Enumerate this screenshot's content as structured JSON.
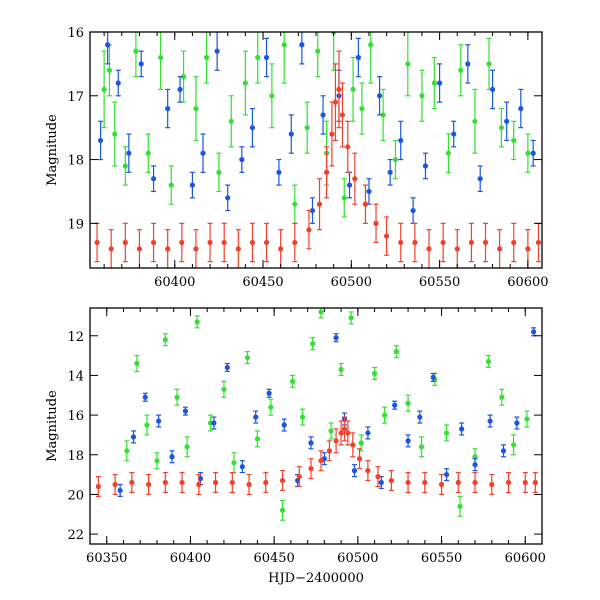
{
  "colors": {
    "green": "#33e033",
    "blue": "#1a55e6",
    "red": "#f2402c",
    "axes": "#000000",
    "background": "#ffffff"
  },
  "chart_data": [
    {
      "type": "scatter",
      "title": "",
      "xlabel": "",
      "ylabel": "Magnitude",
      "xlim": [
        60352,
        60608
      ],
      "ylim": [
        19.7,
        16.0
      ],
      "y_inverted": true,
      "error_bars": true,
      "xticks": [
        60400,
        60450,
        60500,
        60550,
        60600
      ],
      "yticks": [
        16,
        17,
        18,
        19
      ],
      "x_tick_labels": [
        "60400",
        "60450",
        "60500",
        "60550",
        "60600"
      ],
      "y_tick_labels": [
        "16",
        "17",
        "18",
        "19"
      ],
      "series": [
        {
          "color": "green",
          "x": [
            60360,
            60363,
            60366,
            60372,
            60378,
            60385,
            60392,
            60398,
            60405,
            60412,
            60418,
            60425,
            60432,
            60440,
            60447,
            60455,
            60462,
            60468,
            60475,
            60481,
            60486,
            60490,
            60496,
            60501,
            60506,
            60511,
            60518,
            60525,
            60532,
            60540,
            60547,
            60555,
            60562,
            60570,
            60578,
            60585,
            60592,
            60600
          ],
          "y": [
            16.9,
            16.6,
            17.6,
            18.1,
            16.3,
            17.9,
            16.4,
            18.4,
            16.7,
            17.2,
            16.4,
            18.2,
            17.4,
            16.8,
            16.4,
            17.0,
            16.2,
            18.7,
            17.5,
            16.3,
            17.9,
            16.0,
            18.6,
            16.9,
            17.2,
            16.2,
            17.3,
            18.0,
            16.5,
            17.0,
            16.8,
            17.9,
            16.6,
            17.4,
            16.5,
            17.5,
            17.7,
            17.9
          ],
          "yerr": [
            0.6,
            0.4,
            0.5,
            0.3,
            0.4,
            0.3,
            0.5,
            0.3,
            0.4,
            0.5,
            0.4,
            0.3,
            0.4,
            0.5,
            0.4,
            0.5,
            0.6,
            0.3,
            0.4,
            0.4,
            0.5,
            0.6,
            0.3,
            0.5,
            0.4,
            0.6,
            0.4,
            0.3,
            0.5,
            0.4,
            0.4,
            0.3,
            0.4,
            0.5,
            0.4,
            0.3,
            0.3,
            0.3
          ]
        },
        {
          "color": "blue",
          "x": [
            60358,
            60362,
            60368,
            60374,
            60381,
            60388,
            60396,
            60403,
            60410,
            60416,
            60424,
            60430,
            60438,
            60444,
            60452,
            60459,
            60466,
            60472,
            60478,
            60484,
            60493,
            60499,
            60504,
            60510,
            60516,
            60522,
            60528,
            60535,
            60542,
            60550,
            60558,
            60566,
            60573,
            60580,
            60588,
            60596,
            60603
          ],
          "y": [
            17.7,
            16.2,
            16.8,
            17.9,
            16.5,
            18.3,
            17.2,
            16.9,
            18.4,
            17.9,
            16.3,
            18.6,
            18.0,
            17.5,
            16.4,
            18.2,
            17.6,
            16.2,
            18.8,
            17.3,
            17.0,
            18.4,
            16.4,
            18.5,
            17.0,
            18.2,
            17.7,
            18.8,
            18.1,
            16.8,
            17.6,
            16.5,
            18.3,
            16.9,
            17.4,
            17.2,
            17.9
          ],
          "yerr": [
            0.3,
            0.3,
            0.2,
            0.3,
            0.2,
            0.2,
            0.3,
            0.2,
            0.2,
            0.3,
            0.3,
            0.2,
            0.2,
            0.3,
            0.3,
            0.2,
            0.3,
            0.3,
            0.2,
            0.3,
            0.4,
            0.2,
            0.3,
            0.2,
            0.3,
            0.2,
            0.3,
            0.2,
            0.2,
            0.3,
            0.2,
            0.3,
            0.2,
            0.3,
            0.3,
            0.3,
            0.2
          ]
        },
        {
          "color": "red",
          "x": [
            60356,
            60364,
            60372,
            60380,
            60388,
            60396,
            60404,
            60412,
            60420,
            60428,
            60436,
            60444,
            60452,
            60460,
            60468,
            60476,
            60482,
            60486,
            60489,
            60491,
            60493,
            60495,
            60498,
            60502,
            60508,
            60514,
            60520,
            60528,
            60536,
            60544,
            60552,
            60560,
            60568,
            60576,
            60584,
            60592,
            60600,
            60606
          ],
          "y": [
            19.3,
            19.4,
            19.3,
            19.4,
            19.3,
            19.4,
            19.3,
            19.4,
            19.3,
            19.3,
            19.4,
            19.3,
            19.3,
            19.4,
            19.3,
            19.1,
            18.7,
            18.2,
            17.6,
            17.1,
            16.9,
            17.3,
            17.8,
            18.3,
            18.7,
            19.0,
            19.2,
            19.3,
            19.3,
            19.4,
            19.3,
            19.4,
            19.3,
            19.3,
            19.4,
            19.3,
            19.4,
            19.3
          ],
          "yerr": [
            0.3,
            0.3,
            0.3,
            0.3,
            0.3,
            0.3,
            0.3,
            0.3,
            0.3,
            0.3,
            0.3,
            0.3,
            0.3,
            0.3,
            0.3,
            0.3,
            0.4,
            0.4,
            0.5,
            0.6,
            0.6,
            0.5,
            0.4,
            0.4,
            0.3,
            0.3,
            0.3,
            0.3,
            0.3,
            0.3,
            0.3,
            0.3,
            0.3,
            0.3,
            0.3,
            0.3,
            0.3,
            0.3
          ]
        }
      ]
    },
    {
      "type": "scatter",
      "title": "",
      "xlabel": "HJD−2400000",
      "ylabel": "Magnitude",
      "xlim": [
        60340,
        60610
      ],
      "ylim": [
        22.5,
        10.6
      ],
      "y_inverted": true,
      "error_bars": true,
      "xticks": [
        60350,
        60400,
        60450,
        60500,
        60550,
        60600
      ],
      "yticks": [
        12,
        14,
        16,
        18,
        20,
        22
      ],
      "x_tick_labels": [
        "60350",
        "60400",
        "60450",
        "60500",
        "60550",
        "60600"
      ],
      "y_tick_labels": [
        "12",
        "14",
        "16",
        "18",
        "20",
        "22"
      ],
      "series": [
        {
          "color": "green",
          "x": [
            60362,
            60368,
            60374,
            60380,
            60385,
            60392,
            60398,
            60404,
            60412,
            60420,
            60426,
            60434,
            60440,
            60448,
            60455,
            60461,
            60467,
            60473,
            60478,
            60484,
            60490,
            60496,
            60502,
            60510,
            60516,
            60523,
            60530,
            60538,
            60546,
            60553,
            60561,
            60570,
            60578,
            60586,
            60593,
            60601
          ],
          "y": [
            17.8,
            13.4,
            16.5,
            18.3,
            12.2,
            15.1,
            17.6,
            11.3,
            16.4,
            14.7,
            18.4,
            13.1,
            17.2,
            15.6,
            20.8,
            14.3,
            16.1,
            12.4,
            10.8,
            16.8,
            13.7,
            11.1,
            17.4,
            13.9,
            16.0,
            12.8,
            15.4,
            17.6,
            14.2,
            16.9,
            20.6,
            18.1,
            13.3,
            15.1,
            17.5,
            16.2
          ],
          "yerr": [
            0.5,
            0.4,
            0.5,
            0.4,
            0.3,
            0.4,
            0.5,
            0.3,
            0.4,
            0.4,
            0.5,
            0.3,
            0.4,
            0.4,
            0.5,
            0.3,
            0.4,
            0.3,
            0.3,
            0.4,
            0.3,
            0.3,
            0.4,
            0.3,
            0.4,
            0.3,
            0.4,
            0.5,
            0.3,
            0.4,
            0.5,
            0.4,
            0.3,
            0.4,
            0.5,
            0.4
          ]
        },
        {
          "color": "blue",
          "x": [
            60358,
            60366,
            60373,
            60381,
            60389,
            60397,
            60406,
            60414,
            60422,
            60431,
            60439,
            60447,
            60456,
            60464,
            60472,
            60480,
            60487,
            60492,
            60498,
            60506,
            60514,
            60522,
            60530,
            60537,
            60545,
            60553,
            60562,
            60570,
            60579,
            60587,
            60595,
            60605
          ],
          "y": [
            19.8,
            17.1,
            15.1,
            16.3,
            18.1,
            15.8,
            19.2,
            16.4,
            13.6,
            18.6,
            16.1,
            14.9,
            16.5,
            19.3,
            17.4,
            18.2,
            12.1,
            16.2,
            18.8,
            16.9,
            19.4,
            15.5,
            17.3,
            16.1,
            14.1,
            19.0,
            16.7,
            18.5,
            16.3,
            17.8,
            16.4,
            11.8
          ],
          "yerr": [
            0.3,
            0.3,
            0.2,
            0.3,
            0.3,
            0.2,
            0.3,
            0.3,
            0.2,
            0.3,
            0.3,
            0.2,
            0.3,
            0.3,
            0.3,
            0.3,
            0.2,
            0.3,
            0.3,
            0.3,
            0.3,
            0.2,
            0.3,
            0.3,
            0.2,
            0.3,
            0.3,
            0.3,
            0.3,
            0.3,
            0.3,
            0.2
          ]
        },
        {
          "color": "red",
          "x": [
            60345,
            60355,
            60365,
            60375,
            60385,
            60395,
            60405,
            60415,
            60425,
            60435,
            60445,
            60455,
            60465,
            60472,
            60478,
            60483,
            60487,
            60490,
            60492,
            60494,
            60497,
            60501,
            60506,
            60512,
            60520,
            60530,
            60540,
            60550,
            60560,
            60570,
            60580,
            60590,
            60600,
            60606
          ],
          "y": [
            19.6,
            19.5,
            19.4,
            19.5,
            19.4,
            19.4,
            19.5,
            19.4,
            19.4,
            19.5,
            19.4,
            19.3,
            19.1,
            18.7,
            18.3,
            17.8,
            17.3,
            16.9,
            16.7,
            16.9,
            17.5,
            18.2,
            18.8,
            19.1,
            19.3,
            19.4,
            19.4,
            19.5,
            19.4,
            19.4,
            19.5,
            19.4,
            19.4,
            19.4
          ],
          "yerr": [
            0.5,
            0.5,
            0.5,
            0.5,
            0.5,
            0.5,
            0.5,
            0.5,
            0.5,
            0.5,
            0.5,
            0.5,
            0.5,
            0.5,
            0.5,
            0.5,
            0.6,
            0.6,
            0.6,
            0.6,
            0.6,
            0.5,
            0.5,
            0.5,
            0.5,
            0.5,
            0.5,
            0.5,
            0.5,
            0.5,
            0.5,
            0.5,
            0.5,
            0.5
          ]
        }
      ]
    }
  ]
}
